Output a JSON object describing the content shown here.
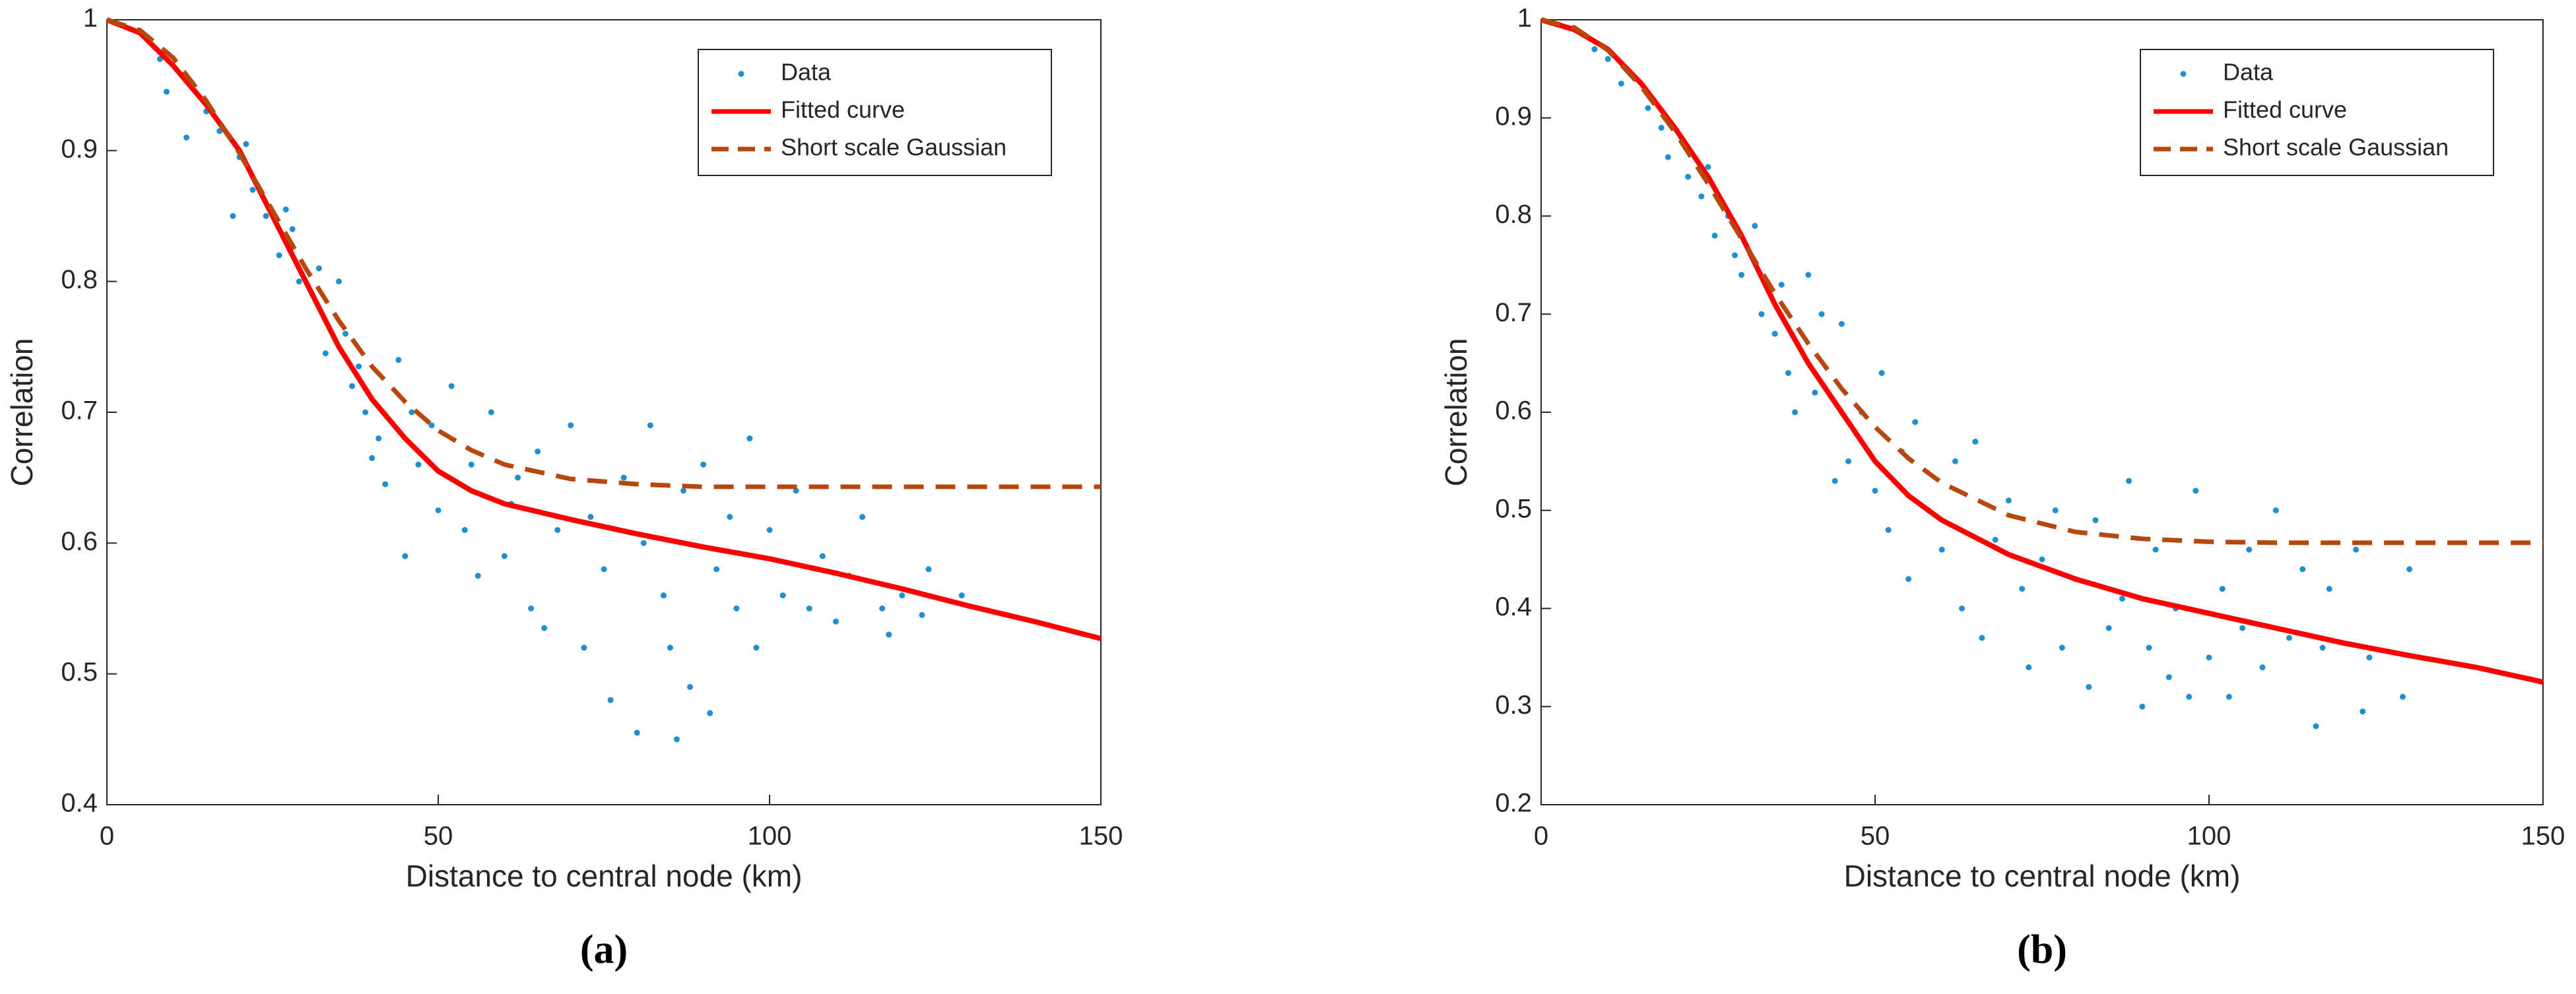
{
  "chart_data": [
    {
      "type": "scatter",
      "caption": "(a)",
      "xlabel": "Distance to central node (km)",
      "ylabel": "Correlation",
      "xlim": [
        0,
        150
      ],
      "xticks": [
        0,
        50,
        100,
        150
      ],
      "ylim": [
        0.4,
        1
      ],
      "yticks": [
        0.4,
        0.5,
        0.6,
        0.7,
        0.8,
        0.9,
        1
      ],
      "legend": "top-right",
      "series": [
        {
          "name": "Data",
          "color": "#1f8fd0",
          "style": "dots",
          "x": [
            8,
            9,
            12,
            13,
            15,
            17,
            19,
            20,
            21,
            22,
            24,
            26,
            27,
            28,
            29,
            31,
            32,
            33,
            35,
            36,
            37,
            38,
            39,
            40,
            41,
            42,
            44,
            45,
            46,
            47,
            49,
            50,
            52,
            54,
            55,
            56,
            58,
            60,
            61,
            62,
            64,
            65,
            66,
            68,
            70,
            72,
            73,
            75,
            76,
            78,
            80,
            81,
            82,
            84,
            85,
            86,
            87,
            88,
            90,
            91,
            92,
            94,
            95,
            97,
            98,
            100,
            102,
            104,
            106,
            108,
            110,
            112,
            114,
            117,
            118,
            120,
            123,
            124,
            129
          ],
          "values": [
            0.97,
            0.945,
            0.91,
            0.95,
            0.93,
            0.915,
            0.85,
            0.895,
            0.905,
            0.87,
            0.85,
            0.82,
            0.855,
            0.84,
            0.8,
            0.79,
            0.81,
            0.745,
            0.8,
            0.76,
            0.72,
            0.735,
            0.7,
            0.665,
            0.68,
            0.645,
            0.74,
            0.59,
            0.7,
            0.66,
            0.69,
            0.625,
            0.72,
            0.61,
            0.66,
            0.575,
            0.7,
            0.59,
            0.63,
            0.65,
            0.55,
            0.67,
            0.535,
            0.61,
            0.69,
            0.52,
            0.62,
            0.58,
            0.48,
            0.65,
            0.455,
            0.6,
            0.69,
            0.56,
            0.52,
            0.45,
            0.64,
            0.49,
            0.66,
            0.47,
            0.58,
            0.62,
            0.55,
            0.68,
            0.52,
            0.61,
            0.56,
            0.64,
            0.55,
            0.59,
            0.54,
            0.575,
            0.62,
            0.55,
            0.53,
            0.56,
            0.545,
            0.58,
            0.56
          ]
        },
        {
          "name": "Fitted curve",
          "color": "#ff0000",
          "style": "solid",
          "x": [
            0,
            5,
            10,
            15,
            20,
            25,
            30,
            35,
            40,
            45,
            50,
            55,
            60,
            70,
            80,
            90,
            100,
            110,
            120,
            130,
            140,
            150
          ],
          "values": [
            1,
            0.99,
            0.965,
            0.935,
            0.9,
            0.85,
            0.8,
            0.75,
            0.71,
            0.68,
            0.655,
            0.64,
            0.63,
            0.618,
            0.607,
            0.597,
            0.588,
            0.577,
            0.565,
            0.552,
            0.54,
            0.527
          ]
        },
        {
          "name": "Short scale Gaussian",
          "color": "#b8470d",
          "style": "dashed",
          "x": [
            0,
            5,
            10,
            15,
            20,
            25,
            30,
            35,
            40,
            45,
            50,
            55,
            60,
            70,
            80,
            90,
            100,
            110,
            120,
            130,
            140,
            150
          ],
          "values": [
            1,
            0.992,
            0.971,
            0.938,
            0.898,
            0.854,
            0.81,
            0.77,
            0.735,
            0.708,
            0.686,
            0.671,
            0.66,
            0.649,
            0.645,
            0.643,
            0.643,
            0.643,
            0.643,
            0.643,
            0.643,
            0.643
          ]
        }
      ]
    },
    {
      "type": "scatter",
      "caption": "(b)",
      "xlabel": "Distance to central node (km)",
      "ylabel": "Correlation",
      "xlim": [
        0,
        150
      ],
      "xticks": [
        0,
        50,
        100,
        150
      ],
      "ylim": [
        0.2,
        1
      ],
      "yticks": [
        0.2,
        0.3,
        0.4,
        0.5,
        0.6,
        0.7,
        0.8,
        0.9,
        1
      ],
      "legend": "top-right",
      "series": [
        {
          "name": "Data",
          "color": "#1f8fd0",
          "style": "dots",
          "x": [
            8,
            10,
            12,
            14,
            16,
            18,
            19,
            21,
            22,
            24,
            25,
            26,
            28,
            29,
            30,
            32,
            33,
            35,
            36,
            37,
            38,
            40,
            41,
            42,
            44,
            45,
            46,
            48,
            50,
            51,
            52,
            54,
            55,
            56,
            58,
            60,
            62,
            63,
            65,
            66,
            68,
            70,
            72,
            73,
            75,
            77,
            78,
            80,
            82,
            83,
            85,
            87,
            88,
            90,
            91,
            92,
            94,
            95,
            97,
            98,
            100,
            102,
            103,
            105,
            106,
            108,
            110,
            112,
            114,
            116,
            117,
            118,
            122,
            123,
            124,
            129,
            130
          ],
          "values": [
            0.97,
            0.96,
            0.935,
            0.94,
            0.91,
            0.89,
            0.86,
            0.88,
            0.84,
            0.82,
            0.85,
            0.78,
            0.8,
            0.76,
            0.74,
            0.79,
            0.7,
            0.68,
            0.73,
            0.64,
            0.6,
            0.74,
            0.62,
            0.7,
            0.53,
            0.69,
            0.55,
            0.6,
            0.52,
            0.64,
            0.48,
            0.56,
            0.43,
            0.59,
            0.5,
            0.46,
            0.55,
            0.4,
            0.57,
            0.37,
            0.47,
            0.51,
            0.42,
            0.34,
            0.45,
            0.5,
            0.36,
            0.43,
            0.32,
            0.49,
            0.38,
            0.41,
            0.53,
            0.3,
            0.36,
            0.46,
            0.33,
            0.4,
            0.31,
            0.52,
            0.35,
            0.42,
            0.31,
            0.38,
            0.46,
            0.34,
            0.5,
            0.37,
            0.44,
            0.28,
            0.36,
            0.42,
            0.46,
            0.295,
            0.35,
            0.31,
            0.44
          ]
        },
        {
          "name": "Fitted curve",
          "color": "#ff0000",
          "style": "solid",
          "x": [
            0,
            5,
            10,
            15,
            20,
            25,
            30,
            35,
            40,
            45,
            50,
            55,
            60,
            70,
            80,
            90,
            100,
            110,
            120,
            130,
            140,
            150
          ],
          "values": [
            1,
            0.99,
            0.97,
            0.935,
            0.89,
            0.84,
            0.78,
            0.71,
            0.65,
            0.6,
            0.55,
            0.515,
            0.49,
            0.455,
            0.43,
            0.41,
            0.395,
            0.38,
            0.365,
            0.352,
            0.34,
            0.325
          ]
        },
        {
          "name": "Short scale Gaussian",
          "color": "#b8470d",
          "style": "dashed",
          "x": [
            0,
            5,
            10,
            15,
            20,
            25,
            30,
            35,
            40,
            45,
            50,
            55,
            60,
            70,
            80,
            90,
            100,
            110,
            120,
            130,
            140,
            150
          ],
          "values": [
            1,
            0.992,
            0.969,
            0.932,
            0.886,
            0.833,
            0.777,
            0.721,
            0.67,
            0.624,
            0.585,
            0.553,
            0.528,
            0.495,
            0.478,
            0.471,
            0.468,
            0.467,
            0.467,
            0.467,
            0.467,
            0.467
          ]
        }
      ]
    }
  ]
}
